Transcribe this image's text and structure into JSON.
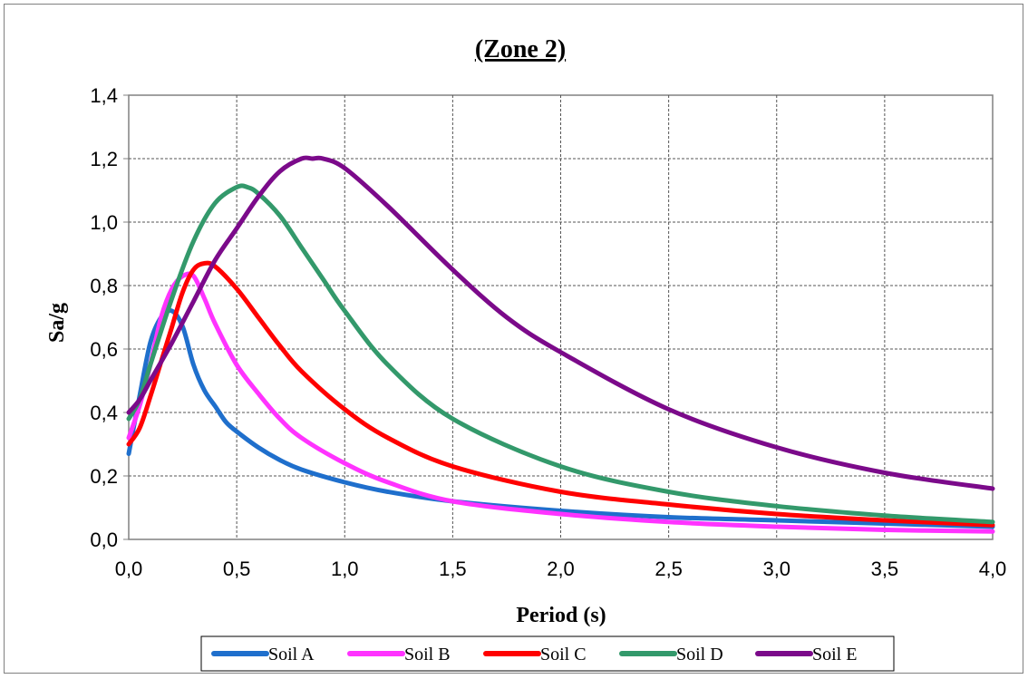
{
  "chart_data": {
    "type": "line",
    "title": "(Zone 2)",
    "xlabel": "Period (s)",
    "ylabel": "Sa/g",
    "xlim": [
      0,
      4
    ],
    "ylim": [
      0,
      1.4
    ],
    "x_ticks": [
      "0,0",
      "0,5",
      "1,0",
      "1,5",
      "2,0",
      "2,5",
      "3,0",
      "3,5",
      "4,0"
    ],
    "y_ticks": [
      "0,0",
      "0,2",
      "0,4",
      "0,6",
      "0,8",
      "1,0",
      "1,2",
      "1,4"
    ],
    "grid": true,
    "legend_position": "bottom",
    "series": [
      {
        "name": "Soil A",
        "color": "#1f6fcc",
        "points": [
          [
            0,
            0.27
          ],
          [
            0.05,
            0.45
          ],
          [
            0.1,
            0.62
          ],
          [
            0.15,
            0.7
          ],
          [
            0.2,
            0.72
          ],
          [
            0.25,
            0.67
          ],
          [
            0.3,
            0.55
          ],
          [
            0.35,
            0.47
          ],
          [
            0.4,
            0.42
          ],
          [
            0.45,
            0.37
          ],
          [
            0.5,
            0.34
          ],
          [
            0.6,
            0.29
          ],
          [
            0.7,
            0.25
          ],
          [
            0.8,
            0.22
          ],
          [
            1.0,
            0.18
          ],
          [
            1.2,
            0.15
          ],
          [
            1.5,
            0.12
          ],
          [
            2.0,
            0.09
          ],
          [
            2.5,
            0.07
          ],
          [
            3.0,
            0.06
          ],
          [
            3.5,
            0.05
          ],
          [
            4.0,
            0.04
          ]
        ]
      },
      {
        "name": "Soil B",
        "color": "#ff33ff",
        "points": [
          [
            0,
            0.32
          ],
          [
            0.05,
            0.42
          ],
          [
            0.1,
            0.55
          ],
          [
            0.15,
            0.7
          ],
          [
            0.2,
            0.79
          ],
          [
            0.25,
            0.83
          ],
          [
            0.3,
            0.83
          ],
          [
            0.35,
            0.76
          ],
          [
            0.4,
            0.68
          ],
          [
            0.5,
            0.55
          ],
          [
            0.6,
            0.46
          ],
          [
            0.7,
            0.38
          ],
          [
            0.8,
            0.32
          ],
          [
            1.0,
            0.24
          ],
          [
            1.2,
            0.18
          ],
          [
            1.5,
            0.12
          ],
          [
            2.0,
            0.08
          ],
          [
            2.5,
            0.055
          ],
          [
            3.0,
            0.04
          ],
          [
            3.5,
            0.03
          ],
          [
            4.0,
            0.025
          ]
        ]
      },
      {
        "name": "Soil C",
        "color": "#ff0000",
        "points": [
          [
            0,
            0.3
          ],
          [
            0.05,
            0.35
          ],
          [
            0.1,
            0.45
          ],
          [
            0.15,
            0.56
          ],
          [
            0.2,
            0.67
          ],
          [
            0.25,
            0.78
          ],
          [
            0.3,
            0.85
          ],
          [
            0.35,
            0.87
          ],
          [
            0.4,
            0.86
          ],
          [
            0.5,
            0.79
          ],
          [
            0.6,
            0.7
          ],
          [
            0.7,
            0.61
          ],
          [
            0.8,
            0.53
          ],
          [
            1.0,
            0.41
          ],
          [
            1.2,
            0.32
          ],
          [
            1.5,
            0.23
          ],
          [
            2.0,
            0.15
          ],
          [
            2.5,
            0.11
          ],
          [
            3.0,
            0.08
          ],
          [
            3.5,
            0.06
          ],
          [
            4.0,
            0.045
          ]
        ]
      },
      {
        "name": "Soil D",
        "color": "#33996b",
        "points": [
          [
            0,
            0.38
          ],
          [
            0.05,
            0.44
          ],
          [
            0.1,
            0.55
          ],
          [
            0.2,
            0.76
          ],
          [
            0.3,
            0.94
          ],
          [
            0.4,
            1.06
          ],
          [
            0.5,
            1.11
          ],
          [
            0.55,
            1.11
          ],
          [
            0.6,
            1.09
          ],
          [
            0.7,
            1.02
          ],
          [
            0.8,
            0.92
          ],
          [
            0.9,
            0.82
          ],
          [
            1.0,
            0.72
          ],
          [
            1.2,
            0.55
          ],
          [
            1.5,
            0.38
          ],
          [
            2.0,
            0.23
          ],
          [
            2.5,
            0.15
          ],
          [
            3.0,
            0.105
          ],
          [
            3.5,
            0.075
          ],
          [
            4.0,
            0.055
          ]
        ]
      },
      {
        "name": "Soil E",
        "color": "#7b0a8a",
        "points": [
          [
            0,
            0.4
          ],
          [
            0.05,
            0.44
          ],
          [
            0.1,
            0.5
          ],
          [
            0.2,
            0.62
          ],
          [
            0.3,
            0.75
          ],
          [
            0.4,
            0.88
          ],
          [
            0.5,
            0.98
          ],
          [
            0.6,
            1.08
          ],
          [
            0.7,
            1.16
          ],
          [
            0.8,
            1.2
          ],
          [
            0.85,
            1.2
          ],
          [
            0.9,
            1.2
          ],
          [
            1.0,
            1.17
          ],
          [
            1.2,
            1.05
          ],
          [
            1.5,
            0.85
          ],
          [
            1.75,
            0.7
          ],
          [
            2.0,
            0.59
          ],
          [
            2.5,
            0.41
          ],
          [
            3.0,
            0.29
          ],
          [
            3.5,
            0.21
          ],
          [
            4.0,
            0.16
          ]
        ]
      }
    ]
  }
}
